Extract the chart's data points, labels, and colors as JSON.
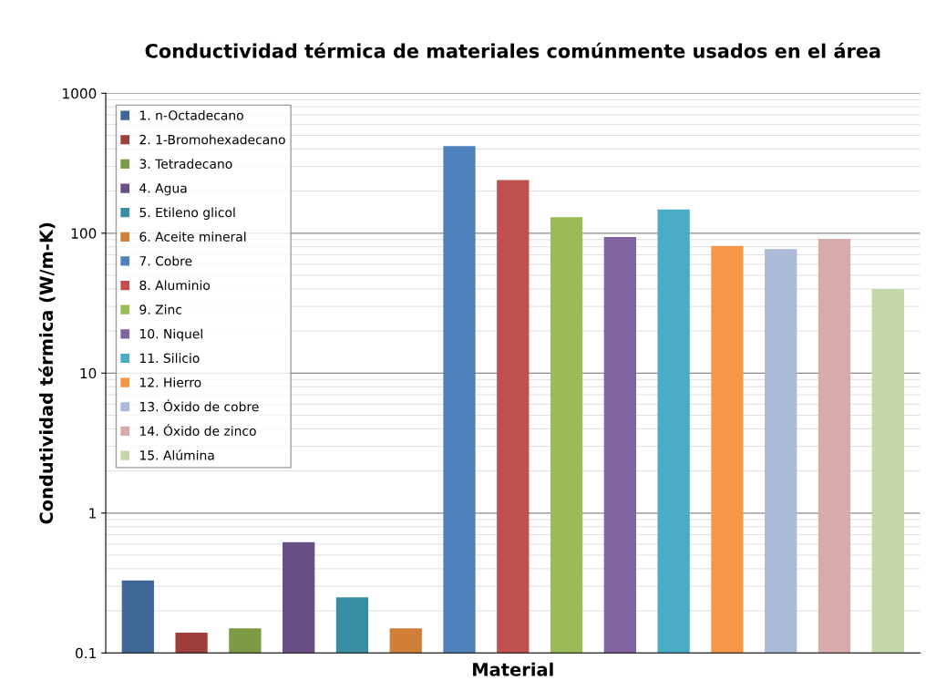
{
  "chart_data": {
    "type": "bar",
    "title": "Conductividad térmica de materiales comúnmente usados en el área",
    "xlabel": "Material",
    "ylabel": "Condutividad térmica (W/m-K)",
    "categories": [
      null,
      null,
      null,
      null,
      null,
      null,
      null,
      null,
      null,
      null,
      null,
      null,
      null,
      null,
      null
    ],
    "series": [
      {
        "name": "1. n-Octadecano",
        "color": "#3f6797",
        "values": [
          0.33,
          null,
          null,
          null,
          null,
          null,
          null,
          null,
          null,
          null,
          null,
          null,
          null,
          null,
          null
        ]
      },
      {
        "name": "2. 1-Bromohexadecano",
        "color": "#9e3f3c",
        "values": [
          null,
          0.14,
          null,
          null,
          null,
          null,
          null,
          null,
          null,
          null,
          null,
          null,
          null,
          null,
          null
        ]
      },
      {
        "name": "3. Tetradecano",
        "color": "#7d9a45",
        "values": [
          null,
          null,
          0.15,
          null,
          null,
          null,
          null,
          null,
          null,
          null,
          null,
          null,
          null,
          null,
          null
        ]
      },
      {
        "name": "4. Agua",
        "color": "#684f86",
        "values": [
          null,
          null,
          null,
          0.62,
          null,
          null,
          null,
          null,
          null,
          null,
          null,
          null,
          null,
          null,
          null
        ]
      },
      {
        "name": "5. Etileno glicol",
        "color": "#3a8ea3",
        "values": [
          null,
          null,
          null,
          null,
          0.25,
          null,
          null,
          null,
          null,
          null,
          null,
          null,
          null,
          null,
          null
        ]
      },
      {
        "name": "6. Aceite mineral",
        "color": "#d07e38",
        "values": [
          null,
          null,
          null,
          null,
          null,
          0.15,
          null,
          null,
          null,
          null,
          null,
          null,
          null,
          null,
          null
        ]
      },
      {
        "name": "7. Cobre",
        "color": "#4f81bd",
        "values": [
          null,
          null,
          null,
          null,
          null,
          null,
          420,
          null,
          null,
          null,
          null,
          null,
          null,
          null,
          null
        ]
      },
      {
        "name": "8. Aluminio",
        "color": "#c0504d",
        "values": [
          null,
          null,
          null,
          null,
          null,
          null,
          null,
          240,
          null,
          null,
          null,
          null,
          null,
          null,
          null
        ]
      },
      {
        "name": "9. Zinc",
        "color": "#9bbb59",
        "values": [
          null,
          null,
          null,
          null,
          null,
          null,
          null,
          null,
          130,
          null,
          null,
          null,
          null,
          null,
          null
        ]
      },
      {
        "name": "10. Niquel",
        "color": "#8064a2",
        "values": [
          null,
          null,
          null,
          null,
          null,
          null,
          null,
          null,
          null,
          94,
          null,
          null,
          null,
          null,
          null
        ]
      },
      {
        "name": "11. Silicio",
        "color": "#4bacc6",
        "values": [
          null,
          null,
          null,
          null,
          null,
          null,
          null,
          null,
          null,
          null,
          148,
          null,
          null,
          null,
          null
        ]
      },
      {
        "name": "12. Hierro",
        "color": "#f79646",
        "values": [
          null,
          null,
          null,
          null,
          null,
          null,
          null,
          null,
          null,
          null,
          null,
          81,
          null,
          null,
          null
        ]
      },
      {
        "name": "13. Óxido de cobre",
        "color": "#aabad7",
        "values": [
          null,
          null,
          null,
          null,
          null,
          null,
          null,
          null,
          null,
          null,
          null,
          null,
          77,
          null,
          null
        ]
      },
      {
        "name": "14. Óxido de zinco",
        "color": "#d9aaaa",
        "values": [
          null,
          null,
          null,
          null,
          null,
          null,
          null,
          null,
          null,
          null,
          null,
          null,
          null,
          91,
          null
        ]
      },
      {
        "name": "15. Alúmina",
        "color": "#c6d6ab",
        "values": [
          null,
          null,
          null,
          null,
          null,
          null,
          null,
          null,
          null,
          null,
          null,
          null,
          null,
          null,
          40
        ]
      }
    ],
    "log": true,
    "ylim": [
      0.1,
      1000
    ],
    "yticks": [
      0.1,
      1,
      10,
      100,
      1000
    ],
    "grid": "y",
    "legend": "top left"
  }
}
